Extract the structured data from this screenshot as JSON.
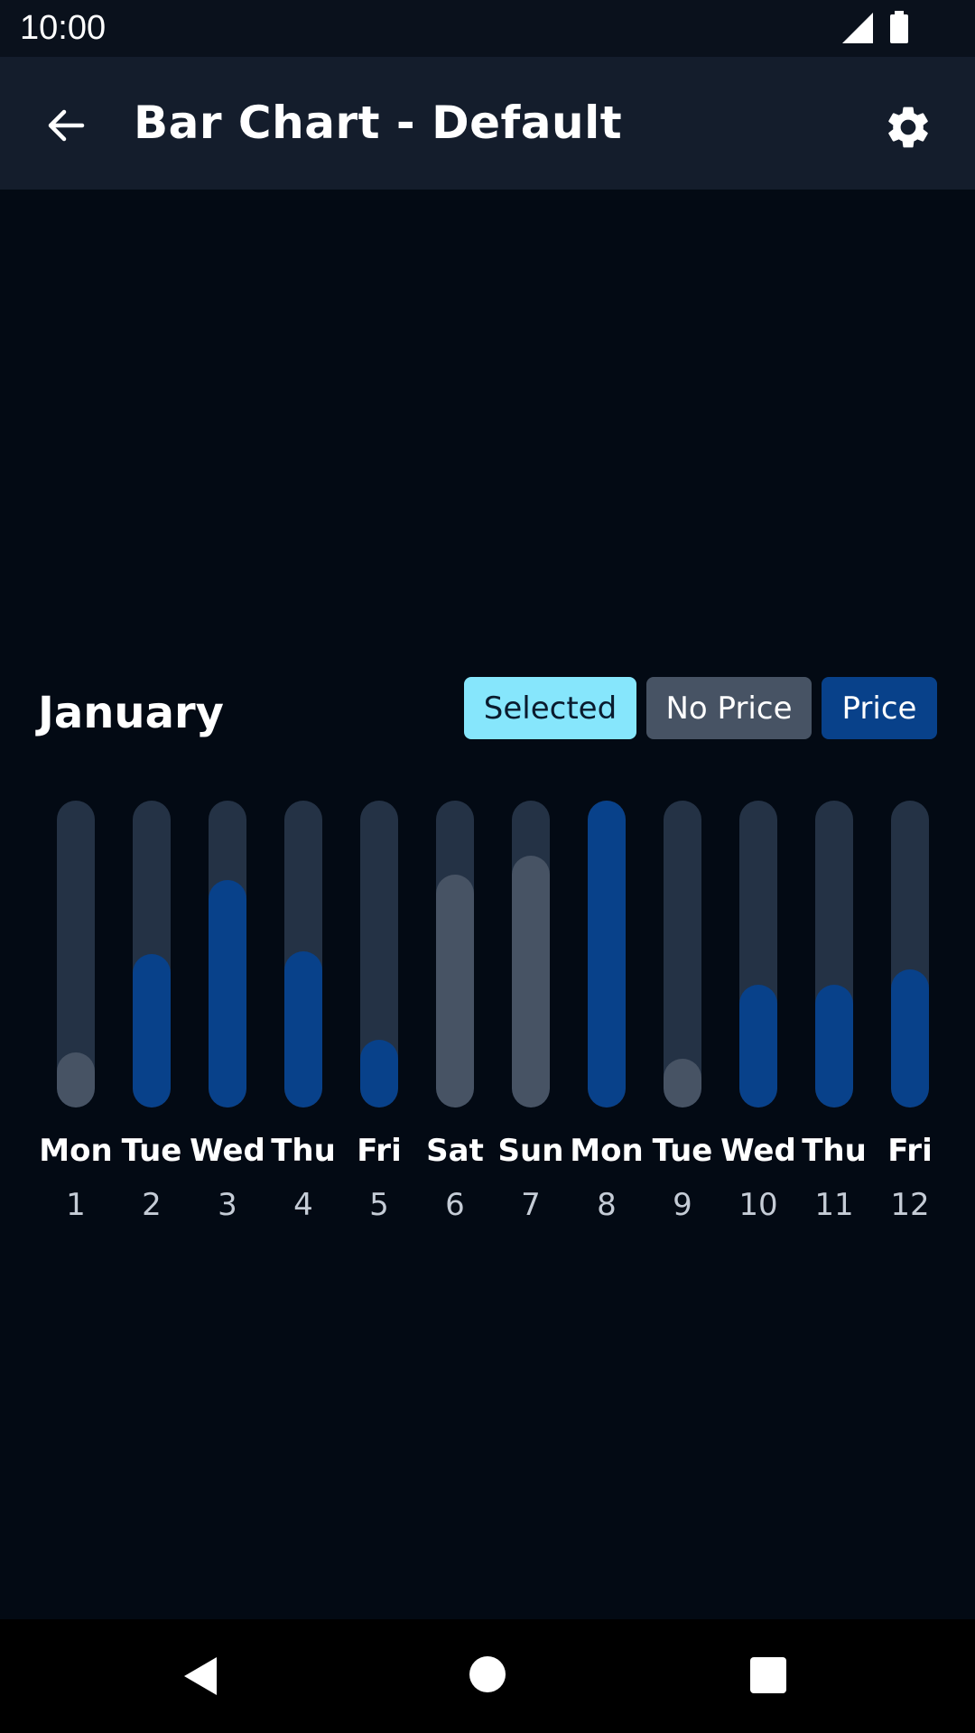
{
  "status": {
    "time": "10:00"
  },
  "app_bar": {
    "title": "Bar Chart - Default"
  },
  "chart_header": {
    "month": "January"
  },
  "legend": {
    "selected": "Selected",
    "no_price": "No Price",
    "price": "Price"
  },
  "colors": {
    "selected": "#86e6fc",
    "no_price": "#475364",
    "price": "#08418a",
    "track": "#243245",
    "background": "#030a14",
    "app_bar": "#141d2c"
  },
  "chart_data": {
    "type": "bar",
    "categories": [
      "1",
      "2",
      "3",
      "4",
      "5",
      "6",
      "7",
      "8",
      "9",
      "10",
      "11",
      "12"
    ],
    "days": [
      "Mon",
      "Tue",
      "Wed",
      "Thu",
      "Fri",
      "Sat",
      "Sun",
      "Mon",
      "Tue",
      "Wed",
      "Thu",
      "Fri"
    ],
    "values": [
      0.18,
      0.5,
      0.74,
      0.51,
      0.22,
      0.76,
      0.82,
      1.0,
      0.16,
      0.4,
      0.4,
      0.45
    ],
    "status": [
      "no_price",
      "price",
      "price",
      "price",
      "price",
      "no_price",
      "no_price",
      "price",
      "no_price",
      "price",
      "price",
      "price"
    ],
    "ylim": [
      0,
      1
    ]
  }
}
